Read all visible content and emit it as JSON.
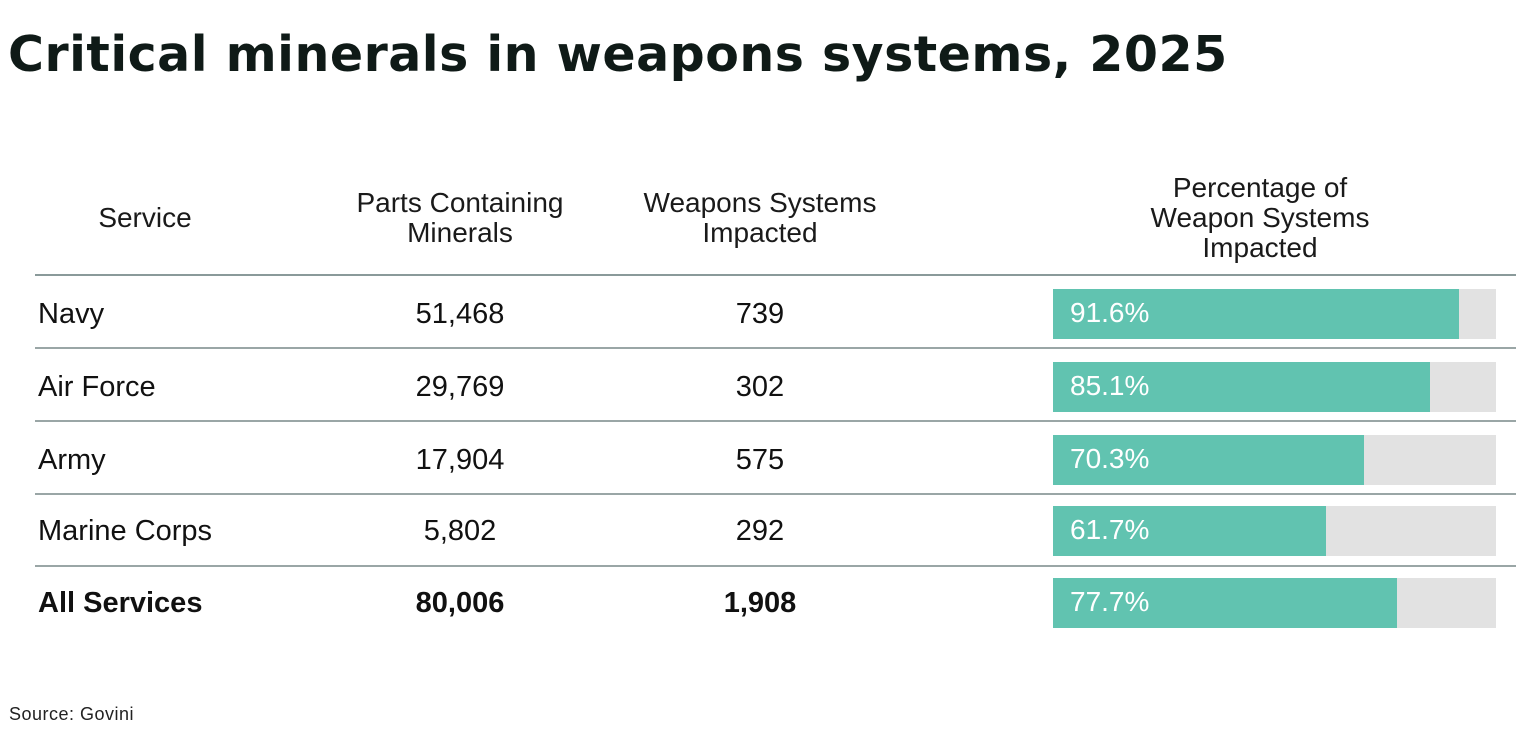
{
  "title": "Critical minerals in weapons systems, 2025",
  "source": "Source: Govini",
  "colors": {
    "bar_fill": "#61c3b0",
    "bar_track": "#e2e2e2",
    "title": "#0f1a17"
  },
  "chart_data": {
    "type": "table",
    "title": "Critical minerals in weapons systems, 2025",
    "columns": [
      "Service",
      "Parts Containing Minerals",
      "Weapons Systems Impacted",
      "Percentage of Weapon Systems Impacted"
    ],
    "header_lines": {
      "service": [
        "Service"
      ],
      "parts": [
        "Parts Containing",
        "Minerals"
      ],
      "systems": [
        "Weapons Systems",
        "Impacted"
      ],
      "pct": [
        "Percentage of",
        "Weapon Systems",
        "Impacted"
      ]
    },
    "rows": [
      {
        "service": "Navy",
        "parts": "51,468",
        "systems": "739",
        "pct_label": "91.6%",
        "pct": 91.6,
        "total": false
      },
      {
        "service": "Air Force",
        "parts": "29,769",
        "systems": "302",
        "pct_label": "85.1%",
        "pct": 85.1,
        "total": false
      },
      {
        "service": "Army",
        "parts": "17,904",
        "systems": "575",
        "pct_label": "70.3%",
        "pct": 70.3,
        "total": false
      },
      {
        "service": "Marine Corps",
        "parts": "5,802",
        "systems": "292",
        "pct_label": "61.7%",
        "pct": 61.7,
        "total": false
      },
      {
        "service": "All Services",
        "parts": "80,006",
        "systems": "1,908",
        "pct_label": "77.7%",
        "pct": 77.7,
        "total": true
      }
    ],
    "pct_range": [
      0,
      100
    ]
  }
}
